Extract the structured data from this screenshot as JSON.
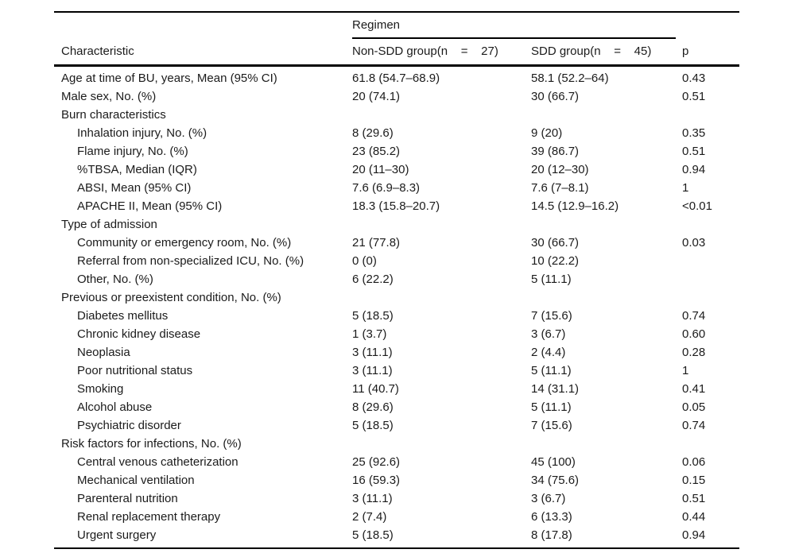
{
  "colors": {
    "background": "#ffffff",
    "text": "#1b1b1b",
    "rule": "#000000"
  },
  "table": {
    "spanner": "Regimen",
    "columns": [
      "Characteristic",
      "Non-SDD group(n    =    27)",
      "SDD group(n    =    45)",
      "p"
    ],
    "rows": [
      {
        "label": "Age at time of BU, years, Mean (95% CI)",
        "indent": false,
        "nonsdd": "61.8 (54.7–68.9)",
        "sdd": "58.1 (52.2–64)",
        "p": "0.43"
      },
      {
        "label": "Male sex, No. (%)",
        "indent": false,
        "nonsdd": "20 (74.1)",
        "sdd": "30 (66.7)",
        "p": "0.51"
      },
      {
        "label": "Burn characteristics",
        "indent": false,
        "nonsdd": "",
        "sdd": "",
        "p": ""
      },
      {
        "label": "Inhalation injury, No. (%)",
        "indent": true,
        "nonsdd": "8 (29.6)",
        "sdd": "9 (20)",
        "p": "0.35"
      },
      {
        "label": "Flame injury, No. (%)",
        "indent": true,
        "nonsdd": "23 (85.2)",
        "sdd": "39 (86.7)",
        "p": "0.51"
      },
      {
        "label": "%TBSA, Median (IQR)",
        "indent": true,
        "nonsdd": "20 (11–30)",
        "sdd": "20 (12–30)",
        "p": "0.94"
      },
      {
        "label": "ABSI, Mean (95% CI)",
        "indent": true,
        "nonsdd": "7.6 (6.9–8.3)",
        "sdd": "7.6 (7–8.1)",
        "p": "1"
      },
      {
        "label": "APACHE II, Mean (95% CI)",
        "indent": true,
        "nonsdd": "18.3 (15.8–20.7)",
        "sdd": "14.5 (12.9–16.2)",
        "p": "<0.01"
      },
      {
        "label": "Type of admission",
        "indent": false,
        "nonsdd": "",
        "sdd": "",
        "p": ""
      },
      {
        "label": "Community or emergency room, No. (%)",
        "indent": true,
        "nonsdd": "21 (77.8)",
        "sdd": "30 (66.7)",
        "p": "0.03"
      },
      {
        "label": "Referral from non-specialized ICU, No. (%)",
        "indent": true,
        "nonsdd": "0 (0)",
        "sdd": "10 (22.2)",
        "p": ""
      },
      {
        "label": "Other, No. (%)",
        "indent": true,
        "nonsdd": "6 (22.2)",
        "sdd": "5 (11.1)",
        "p": ""
      },
      {
        "label": "Previous or preexistent condition, No. (%)",
        "indent": false,
        "nonsdd": "",
        "sdd": "",
        "p": ""
      },
      {
        "label": "Diabetes mellitus",
        "indent": true,
        "nonsdd": "5 (18.5)",
        "sdd": "7 (15.6)",
        "p": "0.74"
      },
      {
        "label": "Chronic kidney disease",
        "indent": true,
        "nonsdd": "1 (3.7)",
        "sdd": "3 (6.7)",
        "p": "0.60"
      },
      {
        "label": "Neoplasia",
        "indent": true,
        "nonsdd": "3 (11.1)",
        "sdd": "2 (4.4)",
        "p": "0.28"
      },
      {
        "label": "Poor nutritional status",
        "indent": true,
        "nonsdd": "3 (11.1)",
        "sdd": "5 (11.1)",
        "p": "1"
      },
      {
        "label": "Smoking",
        "indent": true,
        "nonsdd": "11 (40.7)",
        "sdd": "14 (31.1)",
        "p": "0.41"
      },
      {
        "label": "Alcohol abuse",
        "indent": true,
        "nonsdd": "8 (29.6)",
        "sdd": "5 (11.1)",
        "p": "0.05"
      },
      {
        "label": "Psychiatric disorder",
        "indent": true,
        "nonsdd": "5 (18.5)",
        "sdd": "7 (15.6)",
        "p": "0.74"
      },
      {
        "label": "Risk factors for infections, No. (%)",
        "indent": false,
        "nonsdd": "",
        "sdd": "",
        "p": ""
      },
      {
        "label": "Central venous catheterization",
        "indent": true,
        "nonsdd": "25 (92.6)",
        "sdd": "45 (100)",
        "p": "0.06"
      },
      {
        "label": "Mechanical ventilation",
        "indent": true,
        "nonsdd": "16 (59.3)",
        "sdd": "34 (75.6)",
        "p": "0.15"
      },
      {
        "label": "Parenteral nutrition",
        "indent": true,
        "nonsdd": "3 (11.1)",
        "sdd": "3 (6.7)",
        "p": "0.51"
      },
      {
        "label": "Renal replacement therapy",
        "indent": true,
        "nonsdd": "2 (7.4)",
        "sdd": "6 (13.3)",
        "p": "0.44"
      },
      {
        "label": "Urgent surgery",
        "indent": true,
        "nonsdd": "5 (18.5)",
        "sdd": "8 (17.8)",
        "p": "0.94"
      }
    ]
  }
}
